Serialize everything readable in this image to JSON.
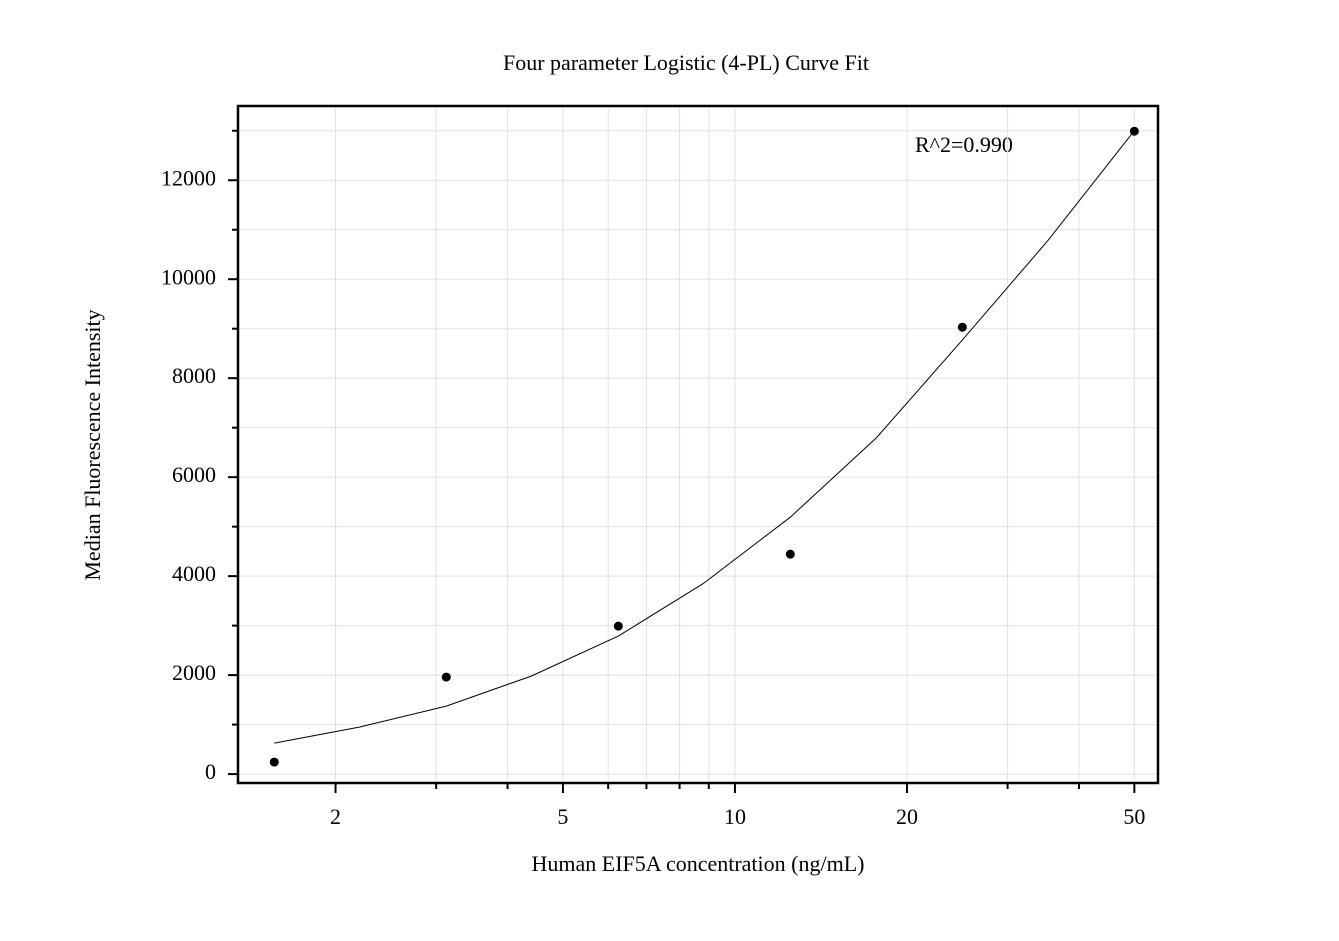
{
  "chart_data": {
    "type": "scatter",
    "title": "Four parameter Logistic (4-PL) Curve Fit",
    "x_label": "Human EIF5A concentration (ng/mL)",
    "y_label": "Median Fluorescence Intensity",
    "annotation": "R^2=0.990",
    "x_log": true,
    "grid": true,
    "xlim": [
      1.35,
      55
    ],
    "ylim": [
      -180,
      13500
    ],
    "xticks": [
      2,
      5,
      10,
      20,
      50
    ],
    "xminorticks": [
      3,
      4,
      6,
      7,
      8,
      9,
      30,
      40
    ],
    "yticks": [
      0,
      2000,
      4000,
      6000,
      8000,
      10000,
      12000
    ],
    "yminorticks": [
      1000,
      3000,
      5000,
      7000,
      9000,
      11000,
      13000
    ],
    "points": {
      "color": "#000000",
      "x": [
        1.5625,
        3.125,
        6.25,
        12.5,
        25,
        50
      ],
      "values": [
        242,
        1960,
        2990,
        4444,
        9030,
        12990
      ]
    },
    "curve": {
      "color": "#000000",
      "x": [
        1.5625,
        2.2,
        3.125,
        4.4,
        6.25,
        8.8,
        12.5,
        17.7,
        25,
        35.4,
        50
      ],
      "values": [
        626,
        950,
        1374,
        1980,
        2788,
        3850,
        5190,
        6800,
        8770,
        10800,
        13000
      ]
    }
  }
}
